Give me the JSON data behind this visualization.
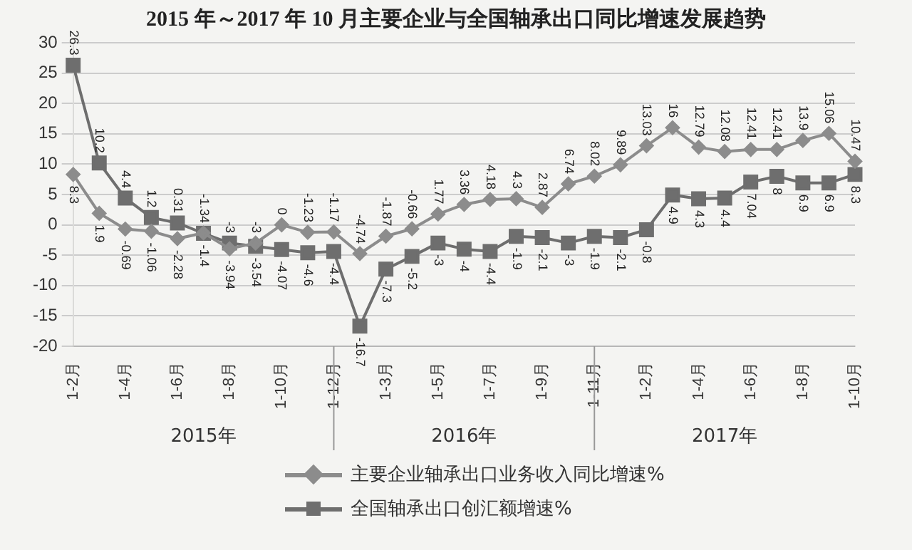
{
  "chart_data": {
    "type": "line",
    "title": "2015 年～2017 年 10 月主要企业与全国轴承出口同比增速发展趋势",
    "categories": [
      "1-2月",
      null,
      "1-4月",
      null,
      "1-6月",
      null,
      "1-8月",
      null,
      "1-10月",
      null,
      "1-12月",
      null,
      "1-3月",
      null,
      "1-5月",
      null,
      "1-7月",
      null,
      "1-9月",
      null,
      "1-11月",
      null,
      "1-2月",
      null,
      "1-4月",
      null,
      "1-6月",
      null,
      "1-8月",
      null,
      "1-10月"
    ],
    "series": [
      {
        "name": "主要企业轴承出口业务收入同比增速%",
        "color": "#8c8c8c",
        "marker": "diamond",
        "values": [
          8.3,
          1.9,
          -0.69,
          -1.06,
          -2.28,
          -1.34,
          -3.94,
          -3,
          0,
          -1.23,
          -1.17,
          -4.74,
          -1.87,
          -0.66,
          1.77,
          3.36,
          4.18,
          4.3,
          2.87,
          6.74,
          8.02,
          9.89,
          13.03,
          16,
          12.79,
          12.08,
          12.41,
          12.41,
          13.9,
          15.06,
          10.47
        ]
      },
      {
        "name": "全国轴承出口创汇额增速%",
        "color": "#6e6e6e",
        "marker": "square",
        "values": [
          26.3,
          10.2,
          4.4,
          1.2,
          0.31,
          -1.4,
          -3,
          -3.54,
          -4.07,
          -4.6,
          -4.4,
          -16.7,
          -7.3,
          -5.2,
          -3,
          -4,
          -4.4,
          -1.9,
          -2.1,
          -3,
          -1.9,
          -2.1,
          -0.8,
          4.9,
          4.3,
          4.4,
          7.04,
          8,
          6.9,
          6.9,
          8.3
        ]
      }
    ],
    "ylim": [
      -20,
      30
    ],
    "yticks": [
      -20,
      -15,
      -10,
      -5,
      0,
      5,
      10,
      15,
      20,
      25,
      30
    ],
    "grid": "y",
    "legend": "bottom",
    "data_labels": true,
    "annotations": [
      "2015年",
      "2016年",
      "2017年"
    ]
  }
}
